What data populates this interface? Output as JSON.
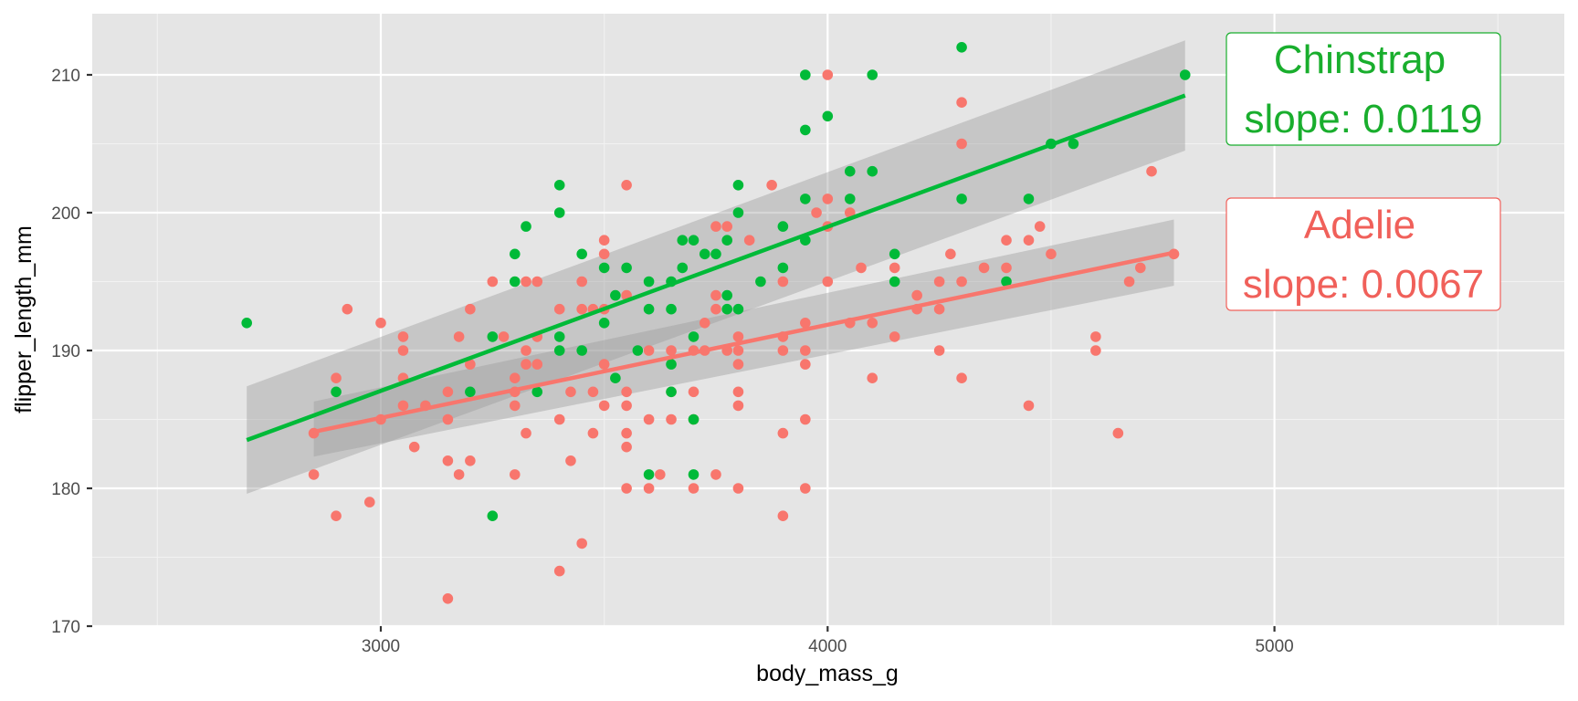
{
  "chart_data": {
    "type": "scatter",
    "title": "",
    "xlabel": "body_mass_g",
    "ylabel": "flipper_length_mm",
    "xlim": [
      2400,
      5650
    ],
    "ylim": [
      170,
      214.5
    ],
    "x_ticks": [
      3000,
      4000,
      5000
    ],
    "y_ticks": [
      170,
      180,
      190,
      200,
      210
    ],
    "grid": true,
    "legend": "none",
    "series": [
      {
        "name": "Adelie",
        "color": "#F8766D",
        "slope": 0.0067,
        "fit": {
          "x": [
            2850,
            4775
          ],
          "y": [
            184.1,
            197.1
          ],
          "ci_low": [
            182.3,
            194.7
          ],
          "ci_high": [
            186.3,
            199.5
          ]
        },
        "points": [
          [
            2850,
            184
          ],
          [
            2850,
            181
          ],
          [
            2900,
            188
          ],
          [
            2900,
            178
          ],
          [
            2925,
            193
          ],
          [
            2975,
            179
          ],
          [
            3000,
            192
          ],
          [
            3000,
            185
          ],
          [
            3050,
            191
          ],
          [
            3050,
            190
          ],
          [
            3050,
            188
          ],
          [
            3050,
            186
          ],
          [
            3075,
            183
          ],
          [
            3100,
            186
          ],
          [
            3150,
            187
          ],
          [
            3150,
            185
          ],
          [
            3150,
            182
          ],
          [
            3150,
            172
          ],
          [
            3175,
            191
          ],
          [
            3175,
            181
          ],
          [
            3200,
            193
          ],
          [
            3200,
            189
          ],
          [
            3200,
            182
          ],
          [
            3250,
            195
          ],
          [
            3275,
            191
          ],
          [
            3300,
            188
          ],
          [
            3300,
            187
          ],
          [
            3300,
            186
          ],
          [
            3300,
            181
          ],
          [
            3325,
            195
          ],
          [
            3325,
            190
          ],
          [
            3325,
            189
          ],
          [
            3325,
            184
          ],
          [
            3350,
            195
          ],
          [
            3350,
            191
          ],
          [
            3350,
            189
          ],
          [
            3400,
            193
          ],
          [
            3400,
            185
          ],
          [
            3400,
            174
          ],
          [
            3425,
            187
          ],
          [
            3425,
            182
          ],
          [
            3450,
            195
          ],
          [
            3450,
            193
          ],
          [
            3450,
            176
          ],
          [
            3475,
            193
          ],
          [
            3475,
            187
          ],
          [
            3475,
            184
          ],
          [
            3500,
            198
          ],
          [
            3500,
            197
          ],
          [
            3500,
            193
          ],
          [
            3500,
            189
          ],
          [
            3500,
            186
          ],
          [
            3550,
            202
          ],
          [
            3550,
            194
          ],
          [
            3550,
            187
          ],
          [
            3550,
            186
          ],
          [
            3550,
            184
          ],
          [
            3550,
            183
          ],
          [
            3550,
            180
          ],
          [
            3600,
            190
          ],
          [
            3600,
            185
          ],
          [
            3600,
            180
          ],
          [
            3625,
            181
          ],
          [
            3650,
            190
          ],
          [
            3650,
            187
          ],
          [
            3650,
            185
          ],
          [
            3700,
            190
          ],
          [
            3700,
            187
          ],
          [
            3700,
            185
          ],
          [
            3700,
            180
          ],
          [
            3725,
            192
          ],
          [
            3725,
            190
          ],
          [
            3750,
            199
          ],
          [
            3750,
            194
          ],
          [
            3750,
            193
          ],
          [
            3750,
            181
          ],
          [
            3775,
            199
          ],
          [
            3775,
            190
          ],
          [
            3800,
            191
          ],
          [
            3800,
            190
          ],
          [
            3800,
            189
          ],
          [
            3800,
            187
          ],
          [
            3800,
            186
          ],
          [
            3800,
            180
          ],
          [
            3825,
            198
          ],
          [
            3875,
            202
          ],
          [
            3900,
            195
          ],
          [
            3900,
            191
          ],
          [
            3900,
            190
          ],
          [
            3900,
            184
          ],
          [
            3900,
            178
          ],
          [
            3950,
            190
          ],
          [
            3950,
            189
          ],
          [
            3950,
            185
          ],
          [
            3950,
            180
          ],
          [
            3950,
            192
          ],
          [
            3975,
            200
          ],
          [
            4000,
            210
          ],
          [
            4000,
            201
          ],
          [
            4000,
            199
          ],
          [
            4000,
            195
          ],
          [
            4050,
            200
          ],
          [
            4050,
            192
          ],
          [
            4075,
            196
          ],
          [
            4100,
            192
          ],
          [
            4100,
            188
          ],
          [
            4150,
            196
          ],
          [
            4150,
            191
          ],
          [
            4200,
            194
          ],
          [
            4200,
            193
          ],
          [
            4250,
            195
          ],
          [
            4250,
            193
          ],
          [
            4250,
            190
          ],
          [
            4275,
            197
          ],
          [
            4300,
            208
          ],
          [
            4300,
            205
          ],
          [
            4300,
            195
          ],
          [
            4300,
            188
          ],
          [
            4350,
            196
          ],
          [
            4400,
            198
          ],
          [
            4400,
            196
          ],
          [
            4450,
            198
          ],
          [
            4450,
            186
          ],
          [
            4475,
            199
          ],
          [
            4500,
            197
          ],
          [
            4600,
            191
          ],
          [
            4600,
            190
          ],
          [
            4650,
            184
          ],
          [
            4675,
            195
          ],
          [
            4700,
            196
          ],
          [
            4725,
            203
          ],
          [
            4775,
            197
          ]
        ]
      },
      {
        "name": "Chinstrap",
        "color": "#00BA38",
        "slope": 0.0119,
        "fit": {
          "x": [
            2700,
            4800
          ],
          "y": [
            183.5,
            208.5
          ],
          "ci_low": [
            179.6,
            204.5
          ],
          "ci_high": [
            187.4,
            212.5
          ]
        },
        "points": [
          [
            2700,
            192
          ],
          [
            2900,
            187
          ],
          [
            3200,
            187
          ],
          [
            3250,
            191
          ],
          [
            3250,
            178
          ],
          [
            3300,
            197
          ],
          [
            3300,
            195
          ],
          [
            3325,
            199
          ],
          [
            3350,
            187
          ],
          [
            3400,
            202
          ],
          [
            3400,
            200
          ],
          [
            3400,
            191
          ],
          [
            3400,
            190
          ],
          [
            3450,
            197
          ],
          [
            3450,
            190
          ],
          [
            3500,
            196
          ],
          [
            3500,
            192
          ],
          [
            3525,
            194
          ],
          [
            3525,
            188
          ],
          [
            3550,
            196
          ],
          [
            3575,
            190
          ],
          [
            3600,
            195
          ],
          [
            3600,
            193
          ],
          [
            3600,
            181
          ],
          [
            3650,
            195
          ],
          [
            3650,
            193
          ],
          [
            3650,
            189
          ],
          [
            3650,
            187
          ],
          [
            3675,
            196
          ],
          [
            3675,
            198
          ],
          [
            3700,
            198
          ],
          [
            3700,
            191
          ],
          [
            3700,
            185
          ],
          [
            3700,
            181
          ],
          [
            3725,
            197
          ],
          [
            3750,
            197
          ],
          [
            3775,
            198
          ],
          [
            3775,
            194
          ],
          [
            3775,
            193
          ],
          [
            3800,
            202
          ],
          [
            3800,
            200
          ],
          [
            3800,
            193
          ],
          [
            3850,
            195
          ],
          [
            3900,
            199
          ],
          [
            3900,
            196
          ],
          [
            3950,
            210
          ],
          [
            3950,
            206
          ],
          [
            3950,
            201
          ],
          [
            3950,
            198
          ],
          [
            4000,
            207
          ],
          [
            4050,
            203
          ],
          [
            4050,
            201
          ],
          [
            4100,
            210
          ],
          [
            4100,
            203
          ],
          [
            4150,
            197
          ],
          [
            4150,
            195
          ],
          [
            4300,
            212
          ],
          [
            4300,
            201
          ],
          [
            4400,
            195
          ],
          [
            4450,
            201
          ],
          [
            4500,
            205
          ],
          [
            4550,
            205
          ],
          [
            4800,
            210
          ]
        ]
      }
    ]
  },
  "annotations": [
    {
      "line1": "Chinstrap",
      "line2": "slope: 0.0119",
      "color": "#19AE2D"
    },
    {
      "line1": "Adelie",
      "line2": "slope: 0.0067",
      "color": "#F0605A"
    }
  ]
}
